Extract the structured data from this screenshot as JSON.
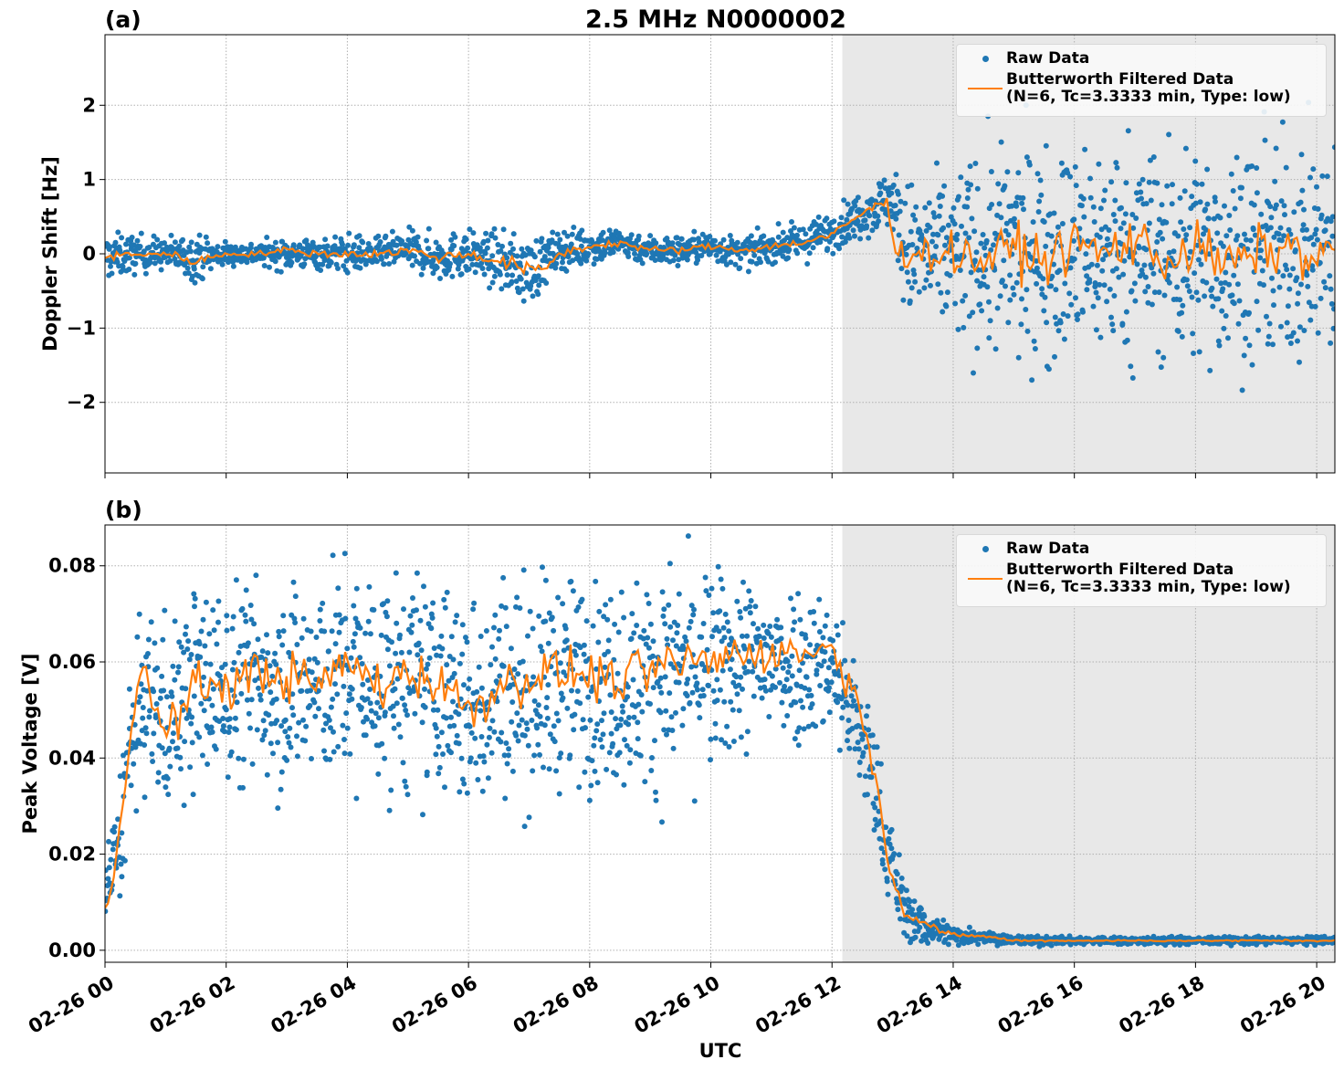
{
  "colors": {
    "raw": "#1f77b4",
    "filtered": "#ff7f0e",
    "shade": "#e8e8e8",
    "grid": "#b0b0b0"
  },
  "figure": {
    "title": "2.5 MHz N0000002",
    "xlabel": "UTC"
  },
  "chart_data": [
    {
      "type": "scatter",
      "panel_label": "(a)",
      "ylabel": "Doppler Shift [Hz]",
      "x_unit": "hours since 02-26 00:00 UTC",
      "xlim": [
        0,
        20.3
      ],
      "ylim": [
        -2.95,
        2.95
      ],
      "y_ticks": [
        2,
        1,
        0,
        -1,
        -2
      ],
      "y_tick_labels": [
        "2",
        "1",
        "0",
        "−1",
        "−2"
      ],
      "x_ticks": [
        0,
        2,
        4,
        6,
        8,
        10,
        12,
        14,
        16,
        18,
        20
      ],
      "x_tick_labels": [
        "02-26 00",
        "02-26 02",
        "02-26 04",
        "02-26 06",
        "02-26 08",
        "02-26 10",
        "02-26 12",
        "02-26 14",
        "02-26 16",
        "02-26 18",
        "02-26 20"
      ],
      "grid": true,
      "shaded_region": [
        12.17,
        20.3
      ],
      "legend": {
        "placement": "upper right",
        "entries": [
          "Raw Data",
          "Butterworth Filtered Data",
          "(N=6, Tc=3.3333 min, Type: low)"
        ]
      },
      "series": [
        {
          "name": "Raw Data",
          "style": "dots",
          "x": [
            0,
            0.5,
            1,
            1.5,
            2,
            2.5,
            3,
            3.5,
            4,
            4.5,
            5,
            5.5,
            6,
            6.5,
            7,
            7.5,
            8,
            8.5,
            9,
            9.5,
            10,
            10.5,
            11,
            11.5,
            12,
            12.5,
            13,
            13.2,
            13.5,
            14,
            14.5,
            15,
            15.5,
            16,
            16.5,
            17,
            17.5,
            18,
            18.5,
            19,
            19.5,
            20,
            20.3
          ],
          "y_center": [
            -0.05,
            0,
            0,
            -0.05,
            0,
            0,
            0,
            0,
            0,
            0,
            0.05,
            -0.05,
            0,
            -0.1,
            -0.25,
            0.05,
            0.1,
            0.15,
            0.05,
            0.05,
            0.1,
            0,
            0.1,
            0.15,
            0.3,
            0.55,
            0.75,
            0.05,
            0,
            0,
            0,
            0,
            0.05,
            0,
            0.05,
            0.1,
            0,
            0,
            0,
            0,
            0,
            0.05,
            0
          ],
          "y_spread": [
            0.3,
            0.25,
            0.2,
            0.3,
            0.15,
            0.15,
            0.2,
            0.2,
            0.25,
            0.2,
            0.25,
            0.3,
            0.3,
            0.35,
            0.45,
            0.25,
            0.25,
            0.2,
            0.2,
            0.2,
            0.2,
            0.2,
            0.2,
            0.25,
            0.25,
            0.3,
            0.4,
            0.9,
            0.9,
            1.1,
            1.3,
            1.4,
            1.4,
            1.4,
            1.4,
            1.4,
            1.4,
            1.4,
            1.4,
            1.4,
            1.4,
            1.4,
            1.4
          ]
        },
        {
          "name": "Butterworth Filtered Data",
          "x": [
            0,
            0.5,
            1,
            1.5,
            2,
            2.5,
            3,
            3.5,
            4,
            4.5,
            5,
            5.5,
            6,
            6.5,
            7,
            7.2,
            7.5,
            8,
            8.5,
            9,
            9.5,
            10,
            10.5,
            11,
            11.5,
            12,
            12.5,
            12.9,
            13.05,
            13.5,
            14,
            14.5,
            15,
            15.5,
            16,
            16.5,
            17,
            17.5,
            18,
            18.5,
            19,
            19.5,
            20,
            20.3
          ],
          "y": [
            -0.05,
            0,
            0,
            -0.1,
            0,
            0,
            0.05,
            0,
            0,
            0,
            0.05,
            -0.05,
            0,
            -0.1,
            -0.2,
            -0.25,
            0,
            0.1,
            0.15,
            0.05,
            0.05,
            0.1,
            0.05,
            0.1,
            0.15,
            0.25,
            0.55,
            0.7,
            0.05,
            0,
            0,
            -0.1,
            0.1,
            -0.1,
            0.15,
            0,
            0.2,
            -0.1,
            0.1,
            -0.15,
            0,
            0.1,
            -0.1,
            0.1
          ]
        }
      ]
    },
    {
      "type": "scatter",
      "panel_label": "(b)",
      "ylabel": "Peak Voltage [V]",
      "x_unit": "hours since 02-26 00:00 UTC",
      "xlim": [
        0,
        20.3
      ],
      "ylim": [
        -0.0025,
        0.0885
      ],
      "y_ticks": [
        0.08,
        0.06,
        0.04,
        0.02,
        0.0
      ],
      "y_tick_labels": [
        "0.08",
        "0.06",
        "0.04",
        "0.02",
        "0.00"
      ],
      "x_ticks": [
        0,
        2,
        4,
        6,
        8,
        10,
        12,
        14,
        16,
        18,
        20
      ],
      "x_tick_labels": [
        "02-26 00",
        "02-26 02",
        "02-26 04",
        "02-26 06",
        "02-26 08",
        "02-26 10",
        "02-26 12",
        "02-26 14",
        "02-26 16",
        "02-26 18",
        "02-26 20"
      ],
      "grid": true,
      "shaded_region": [
        12.17,
        20.3
      ],
      "legend": {
        "placement": "upper right",
        "entries": [
          "Raw Data",
          "Butterworth Filtered Data",
          "(N=6, Tc=3.3333 min, Type: low)"
        ]
      },
      "series": [
        {
          "name": "Raw Data",
          "style": "dots",
          "x": [
            0,
            0.2,
            0.4,
            0.6,
            0.8,
            1,
            1.5,
            2,
            2.5,
            3,
            3.5,
            4,
            4.5,
            5,
            5.5,
            6,
            6.5,
            7,
            7.5,
            8,
            8.5,
            9,
            9.5,
            10,
            10.5,
            11,
            11.5,
            12,
            12.3,
            12.6,
            12.9,
            13.2,
            13.5,
            13.8,
            14,
            14.5,
            15,
            16,
            17,
            18,
            19,
            20,
            20.3
          ],
          "y_center": [
            0.012,
            0.02,
            0.04,
            0.05,
            0.052,
            0.048,
            0.055,
            0.055,
            0.056,
            0.056,
            0.055,
            0.058,
            0.055,
            0.056,
            0.055,
            0.05,
            0.056,
            0.054,
            0.056,
            0.056,
            0.055,
            0.056,
            0.058,
            0.058,
            0.06,
            0.06,
            0.06,
            0.06,
            0.05,
            0.04,
            0.022,
            0.008,
            0.005,
            0.004,
            0.003,
            0.003,
            0.002,
            0.002,
            0.002,
            0.002,
            0.002,
            0.002,
            0.002
          ],
          "y_spread": [
            0.008,
            0.012,
            0.016,
            0.016,
            0.018,
            0.02,
            0.02,
            0.02,
            0.021,
            0.021,
            0.022,
            0.022,
            0.022,
            0.022,
            0.022,
            0.022,
            0.022,
            0.022,
            0.021,
            0.021,
            0.021,
            0.021,
            0.021,
            0.02,
            0.018,
            0.016,
            0.016,
            0.014,
            0.014,
            0.012,
            0.01,
            0.006,
            0.004,
            0.003,
            0.002,
            0.0015,
            0.001,
            0.0008,
            0.0008,
            0.0008,
            0.0008,
            0.0008,
            0.0008
          ]
        },
        {
          "name": "Butterworth Filtered Data",
          "x": [
            0,
            0.2,
            0.4,
            0.6,
            0.8,
            1,
            1.5,
            2,
            2.5,
            3,
            3.5,
            4,
            4.5,
            5,
            5.5,
            6,
            6.5,
            7,
            7.5,
            8,
            8.5,
            9,
            9.5,
            10,
            10.5,
            11,
            11.5,
            12,
            12.3,
            12.6,
            12.9,
            13.2,
            13.5,
            13.8,
            14,
            14.5,
            15,
            16,
            17,
            18,
            19,
            20,
            20.3
          ],
          "y": [
            0.008,
            0.02,
            0.045,
            0.06,
            0.05,
            0.045,
            0.055,
            0.055,
            0.058,
            0.057,
            0.055,
            0.06,
            0.055,
            0.058,
            0.056,
            0.05,
            0.055,
            0.057,
            0.058,
            0.057,
            0.056,
            0.058,
            0.06,
            0.06,
            0.062,
            0.062,
            0.062,
            0.063,
            0.055,
            0.045,
            0.02,
            0.008,
            0.006,
            0.004,
            0.003,
            0.003,
            0.002,
            0.002,
            0.002,
            0.002,
            0.002,
            0.002,
            0.002
          ]
        }
      ]
    }
  ]
}
